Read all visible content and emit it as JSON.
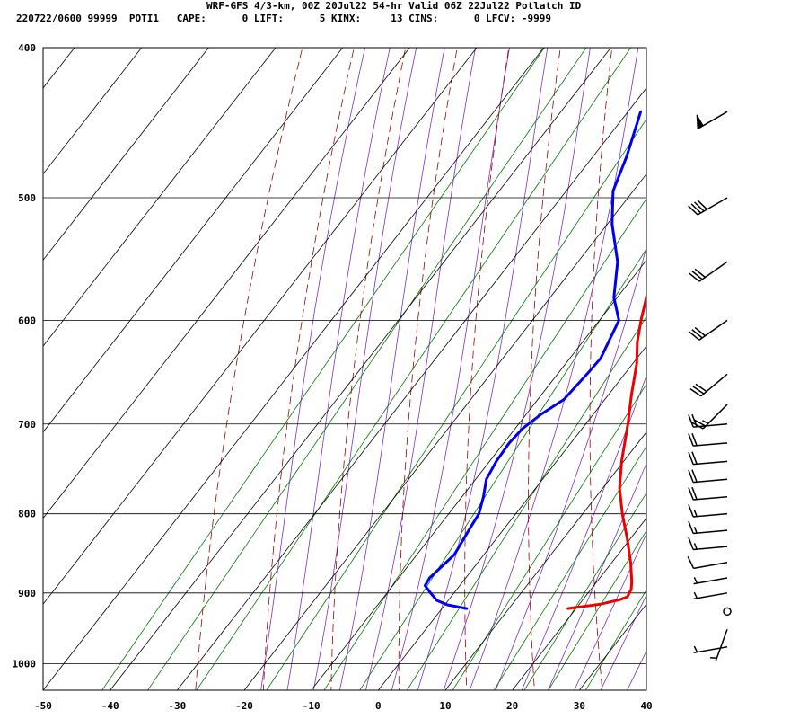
{
  "header": {
    "title": "WRF-GFS 4/3-km, 00Z 20Jul22 54-hr Valid 06Z 22Jul22 Potlatch ID",
    "params": "220722/0600 99999  POTI1   CAPE:      0 LIFT:      5 KINX:     13 CINS:      0 LFCV: -9999"
  },
  "colors": {
    "temperature": "#ee0000",
    "dewpoint": "#0000ee",
    "isotherm": "#000000",
    "dry_adiabat": "#990000",
    "moist_adiabat": "#7b2fbe",
    "mixing_ratio": "#007700",
    "wind_barb": "#000000"
  },
  "chart_data": {
    "type": "skew-t",
    "title": "",
    "xlabel": "",
    "ylabel": "",
    "x_ticks": [
      -50,
      -40,
      -30,
      -20,
      -10,
      0,
      10,
      20,
      30,
      40
    ],
    "x_tick_labels": [
      "-50",
      "-40",
      "-30",
      "-20",
      "-10",
      "0",
      "10",
      "20",
      "30",
      "40"
    ],
    "y_ticks": [
      400,
      500,
      600,
      700,
      800,
      900,
      1000
    ],
    "y_tick_labels": [
      "400",
      "500",
      "600",
      "700",
      "800",
      "900",
      "1000"
    ],
    "y_scale": "log",
    "ylim": [
      1040,
      400
    ],
    "xlim": [
      -50,
      40
    ],
    "grid": true,
    "series": [
      {
        "key": "temperature",
        "points": [
          {
            "p": 921,
            "t": 18.8
          },
          {
            "p": 915,
            "t": 23.2
          },
          {
            "p": 909,
            "t": 25.5
          },
          {
            "p": 905,
            "t": 26.3
          },
          {
            "p": 895,
            "t": 26.0
          },
          {
            "p": 885,
            "t": 25.2
          },
          {
            "p": 860,
            "t": 22.8
          },
          {
            "p": 830,
            "t": 19.5
          },
          {
            "p": 800,
            "t": 15.9
          },
          {
            "p": 770,
            "t": 12.5
          },
          {
            "p": 740,
            "t": 9.7
          },
          {
            "p": 700,
            "t": 6.3
          },
          {
            "p": 670,
            "t": 3.4
          },
          {
            "p": 640,
            "t": 0.6
          },
          {
            "p": 620,
            "t": -1.8
          },
          {
            "p": 600,
            "t": -3.8
          },
          {
            "p": 570,
            "t": -6.6
          },
          {
            "p": 540,
            "t": -9.3
          },
          {
            "p": 500,
            "t": -11.8
          },
          {
            "p": 470,
            "t": -14.6
          },
          {
            "p": 440,
            "t": -17.7
          }
        ]
      },
      {
        "key": "dewpoint",
        "points": [
          {
            "p": 921,
            "t": 3.7
          },
          {
            "p": 916,
            "t": 0.4
          },
          {
            "p": 910,
            "t": -1.7
          },
          {
            "p": 900,
            "t": -3.5
          },
          {
            "p": 890,
            "t": -5.2
          },
          {
            "p": 880,
            "t": -5.4
          },
          {
            "p": 850,
            "t": -4.4
          },
          {
            "p": 820,
            "t": -5.1
          },
          {
            "p": 800,
            "t": -5.5
          },
          {
            "p": 780,
            "t": -6.8
          },
          {
            "p": 760,
            "t": -8.4
          },
          {
            "p": 740,
            "t": -9.0
          },
          {
            "p": 720,
            "t": -9.2
          },
          {
            "p": 705,
            "t": -8.9
          },
          {
            "p": 690,
            "t": -7.8
          },
          {
            "p": 675,
            "t": -6.1
          },
          {
            "p": 650,
            "t": -5.6
          },
          {
            "p": 635,
            "t": -5.4
          },
          {
            "p": 600,
            "t": -7.1
          },
          {
            "p": 580,
            "t": -10.5
          },
          {
            "p": 550,
            "t": -14.1
          },
          {
            "p": 520,
            "t": -19.3
          },
          {
            "p": 495,
            "t": -23.0
          },
          {
            "p": 470,
            "t": -25.0
          },
          {
            "p": 440,
            "t": -28.1
          }
        ]
      }
    ],
    "wind_barbs": [
      {
        "p": 440,
        "speed_kt": 50,
        "dir_deg": 240
      },
      {
        "p": 500,
        "speed_kt": 40,
        "dir_deg": 240
      },
      {
        "p": 550,
        "speed_kt": 30,
        "dir_deg": 235
      },
      {
        "p": 600,
        "speed_kt": 30,
        "dir_deg": 235
      },
      {
        "p": 650,
        "speed_kt": 30,
        "dir_deg": 230
      },
      {
        "p": 680,
        "speed_kt": 25,
        "dir_deg": 225
      },
      {
        "p": 700,
        "speed_kt": 20,
        "dir_deg": 265
      },
      {
        "p": 720,
        "speed_kt": 20,
        "dir_deg": 265
      },
      {
        "p": 740,
        "speed_kt": 20,
        "dir_deg": 265
      },
      {
        "p": 760,
        "speed_kt": 20,
        "dir_deg": 265
      },
      {
        "p": 780,
        "speed_kt": 20,
        "dir_deg": 265
      },
      {
        "p": 800,
        "speed_kt": 15,
        "dir_deg": 265
      },
      {
        "p": 820,
        "speed_kt": 15,
        "dir_deg": 265
      },
      {
        "p": 840,
        "speed_kt": 15,
        "dir_deg": 265
      },
      {
        "p": 860,
        "speed_kt": 10,
        "dir_deg": 260
      },
      {
        "p": 880,
        "speed_kt": 5,
        "dir_deg": 260
      },
      {
        "p": 900,
        "speed_kt": 5,
        "dir_deg": 260
      },
      {
        "p": 925,
        "speed_kt": 0,
        "dir_deg": 0
      },
      {
        "p": 950,
        "speed_kt": 5,
        "dir_deg": 200
      },
      {
        "p": 975,
        "speed_kt": 5,
        "dir_deg": 260
      }
    ]
  }
}
